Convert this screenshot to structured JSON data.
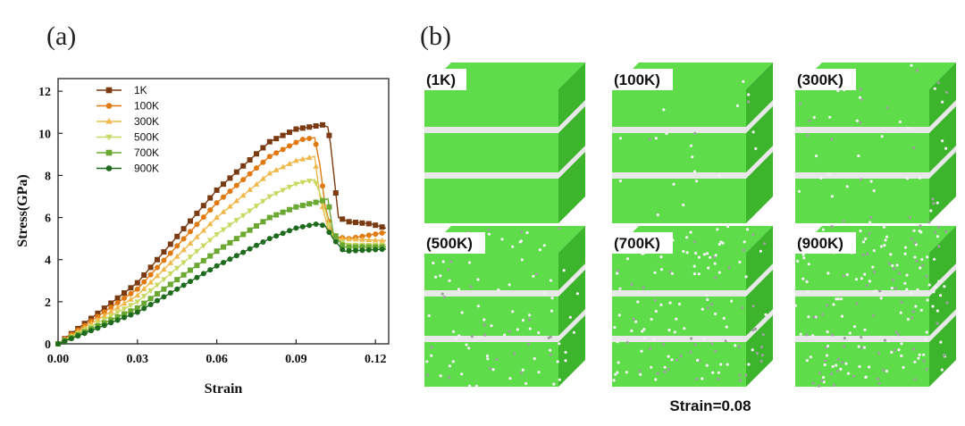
{
  "panel_a": {
    "label": "(a)"
  },
  "panel_b": {
    "label": "(b)",
    "caption": "Strain=0.08",
    "cubes": [
      {
        "label": "(1K)",
        "disorder": 0.0
      },
      {
        "label": "(100K)",
        "disorder": 0.08
      },
      {
        "label": "(300K)",
        "disorder": 0.2
      },
      {
        "label": "(500K)",
        "disorder": 0.4
      },
      {
        "label": "(700K)",
        "disorder": 0.55
      },
      {
        "label": "(900K)",
        "disorder": 0.75
      }
    ],
    "colors": {
      "crystal": "#5fdc4a",
      "crystal_dark": "#3cb52c",
      "defect": "#e8e8e8"
    }
  },
  "chart_data": {
    "type": "line",
    "xlabel": "Strain",
    "ylabel": "Stress(GPa)",
    "xlim": [
      0,
      0.125
    ],
    "ylim": [
      0,
      12.6
    ],
    "xticks": [
      "0.00",
      "0.03",
      "0.06",
      "0.09",
      "0.12"
    ],
    "yticks": [
      "0",
      "2",
      "4",
      "6",
      "8",
      "10",
      "12"
    ],
    "legend_position": "top-left",
    "series": [
      {
        "name": "1K",
        "color": "#7a3b12",
        "marker": "square",
        "points": [
          [
            0,
            0
          ],
          [
            0.03,
            2.9
          ],
          [
            0.06,
            7.3
          ],
          [
            0.08,
            9.6
          ],
          [
            0.09,
            10.2
          ],
          [
            0.1,
            10.4
          ],
          [
            0.102,
            10.3
          ],
          [
            0.103,
            9.5
          ],
          [
            0.106,
            6.0
          ],
          [
            0.11,
            5.8
          ],
          [
            0.118,
            5.7
          ],
          [
            0.124,
            5.5
          ]
        ]
      },
      {
        "name": "100K",
        "color": "#e07a10",
        "marker": "circle",
        "points": [
          [
            0,
            0
          ],
          [
            0.03,
            2.6
          ],
          [
            0.06,
            6.7
          ],
          [
            0.08,
            8.9
          ],
          [
            0.092,
            9.7
          ],
          [
            0.097,
            9.8
          ],
          [
            0.099,
            8.5
          ],
          [
            0.101,
            6.5
          ],
          [
            0.104,
            5.1
          ],
          [
            0.11,
            5.0
          ],
          [
            0.124,
            5.3
          ]
        ]
      },
      {
        "name": "300K",
        "color": "#f0b84a",
        "marker": "triangle-up",
        "points": [
          [
            0,
            0
          ],
          [
            0.03,
            2.3
          ],
          [
            0.06,
            6.0
          ],
          [
            0.08,
            8.1
          ],
          [
            0.09,
            8.7
          ],
          [
            0.097,
            8.9
          ],
          [
            0.099,
            7.0
          ],
          [
            0.102,
            5.5
          ],
          [
            0.106,
            5.0
          ],
          [
            0.124,
            4.9
          ]
        ]
      },
      {
        "name": "500K",
        "color": "#c8d860",
        "marker": "triangle-down",
        "points": [
          [
            0,
            0
          ],
          [
            0.03,
            2.0
          ],
          [
            0.06,
            5.2
          ],
          [
            0.08,
            7.0
          ],
          [
            0.09,
            7.6
          ],
          [
            0.097,
            7.8
          ],
          [
            0.1,
            6.8
          ],
          [
            0.104,
            5.0
          ],
          [
            0.11,
            4.7
          ],
          [
            0.124,
            4.7
          ]
        ]
      },
      {
        "name": "700K",
        "color": "#6aa832",
        "marker": "square",
        "points": [
          [
            0,
            0
          ],
          [
            0.03,
            1.7
          ],
          [
            0.06,
            4.4
          ],
          [
            0.08,
            6.0
          ],
          [
            0.09,
            6.5
          ],
          [
            0.1,
            6.8
          ],
          [
            0.102,
            6.9
          ],
          [
            0.104,
            5.3
          ],
          [
            0.108,
            4.6
          ],
          [
            0.124,
            4.6
          ]
        ]
      },
      {
        "name": "900K",
        "color": "#1e6b1e",
        "marker": "circle",
        "points": [
          [
            0,
            0
          ],
          [
            0.03,
            1.5
          ],
          [
            0.06,
            3.7
          ],
          [
            0.08,
            5.0
          ],
          [
            0.09,
            5.5
          ],
          [
            0.098,
            5.7
          ],
          [
            0.101,
            5.6
          ],
          [
            0.104,
            5.0
          ],
          [
            0.108,
            4.4
          ],
          [
            0.124,
            4.5
          ]
        ]
      }
    ]
  }
}
